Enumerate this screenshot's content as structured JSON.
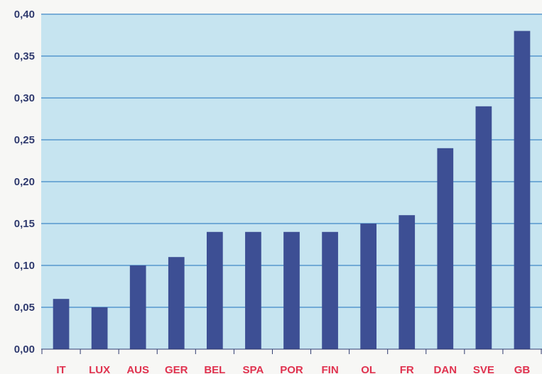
{
  "colors": {
    "plot_background": "#c6e4f0",
    "gridline": "#3f86c6",
    "bar": "#3d4f94",
    "y_tick_text": "#2f3a6e",
    "x_tick_text": "#e0324f"
  },
  "chart_data": {
    "type": "bar",
    "title": "",
    "xlabel": "",
    "ylabel": "",
    "categories": [
      "IT",
      "LUX",
      "AUS",
      "GER",
      "BEL",
      "SPA",
      "POR",
      "FIN",
      "OL",
      "FR",
      "DAN",
      "SVE",
      "GB"
    ],
    "values": [
      0.06,
      0.05,
      0.1,
      0.11,
      0.14,
      0.14,
      0.14,
      0.14,
      0.15,
      0.16,
      0.24,
      0.29,
      0.38
    ],
    "ylim": [
      0,
      0.4
    ],
    "yticks": [
      0.0,
      0.05,
      0.1,
      0.15,
      0.2,
      0.25,
      0.3,
      0.35,
      0.4
    ],
    "ytick_labels": [
      "0,00",
      "0,05",
      "0,10",
      "0,15",
      "0,20",
      "0,25",
      "0,30",
      "0,35",
      "0,40"
    ],
    "grid": true,
    "legend": "none"
  }
}
